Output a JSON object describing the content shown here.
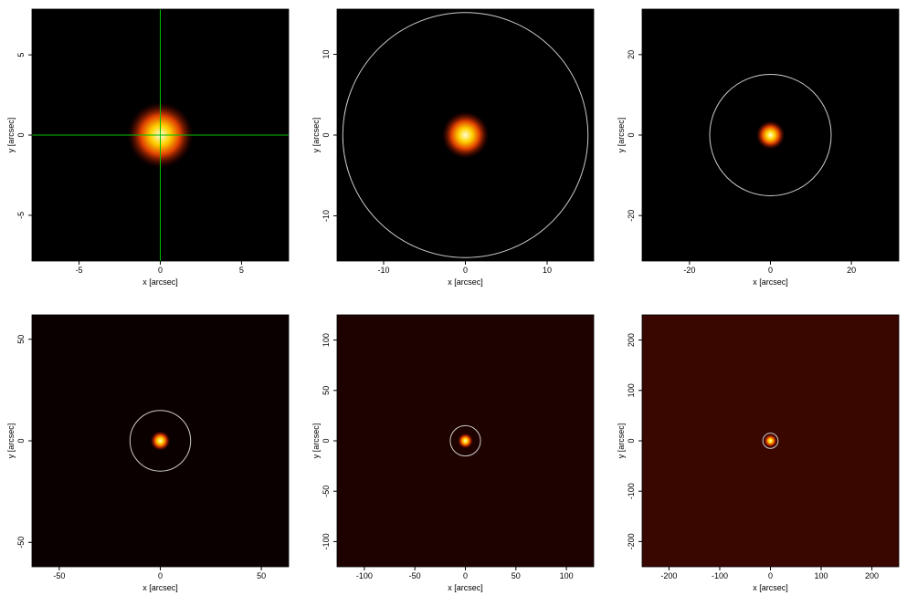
{
  "chart_data": [
    {
      "type": "image",
      "xlabel": "x [arcsec]",
      "ylabel": "y [arcsec]",
      "xlim": [
        -7.9,
        7.9
      ],
      "ylim": [
        -7.85,
        7.85
      ],
      "xticks": [
        -5,
        0,
        5
      ],
      "yticks": [
        -5,
        0,
        5
      ],
      "background": "#000000",
      "crosshair": true,
      "crosshair_color": "#00c000"
    },
    {
      "type": "image",
      "xlabel": "x [arcsec]",
      "ylabel": "y [arcsec]",
      "xlim": [
        -15.7,
        15.7
      ],
      "ylim": [
        -15.6,
        15.6
      ],
      "xticks": [
        -10,
        0,
        10
      ],
      "yticks": [
        -10,
        0,
        10
      ],
      "background": "#000000",
      "aperture_radius": 15,
      "aperture_color": "#cccccc"
    },
    {
      "type": "image",
      "xlabel": "x [arcsec]",
      "ylabel": "y [arcsec]",
      "xlim": [
        -31.7,
        31.7
      ],
      "ylim": [
        -31.3,
        31.3
      ],
      "xticks": [
        -20,
        0,
        20
      ],
      "yticks": [
        -20,
        0,
        20
      ],
      "background": "#000000",
      "aperture_radius": 15,
      "aperture_color": "#cccccc"
    },
    {
      "type": "image",
      "xlabel": "x [arcsec]",
      "ylabel": "y [arcsec]",
      "xlim": [
        -63.5,
        63.5
      ],
      "ylim": [
        -62,
        62
      ],
      "xticks": [
        -50,
        0,
        50
      ],
      "yticks": [
        -50,
        0,
        50
      ],
      "background": "#0a0000",
      "aperture_radius": 15,
      "aperture_color": "#cccccc"
    },
    {
      "type": "image",
      "xlabel": "x [arcsec]",
      "ylabel": "y [arcsec]",
      "xlim": [
        -127,
        127
      ],
      "ylim": [
        -125,
        125
      ],
      "xticks": [
        -100,
        -50,
        0,
        50,
        100
      ],
      "yticks": [
        -100,
        -50,
        0,
        50,
        100
      ],
      "background": "#1e0200",
      "aperture_radius": 15,
      "aperture_color": "#cccccc"
    },
    {
      "type": "image",
      "xlabel": "x [arcsec]",
      "ylabel": "y [arcsec]",
      "xlim": [
        -253,
        253
      ],
      "ylim": [
        -250,
        250
      ],
      "xticks": [
        -200,
        -100,
        0,
        100,
        200
      ],
      "yticks": [
        -200,
        -100,
        0,
        100,
        200
      ],
      "background": "#3a0600",
      "aperture_radius": 15,
      "aperture_color": "#cccccc"
    }
  ]
}
